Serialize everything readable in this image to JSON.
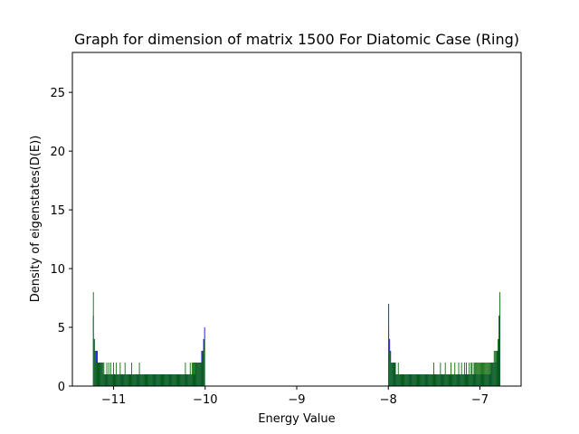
{
  "chart_data": {
    "type": "bar",
    "title": "Graph for dimension of matrix 1500 For Diatomic Case (Ring)",
    "xlabel": "Energy Value",
    "ylabel": "Density of eigenstates(D(E))",
    "xlim": [
      -11.45,
      -6.55
    ],
    "ylim": [
      0,
      28.4
    ],
    "xticks": [
      -11,
      -10,
      -9,
      -8,
      -7
    ],
    "xtick_labels": [
      "−11",
      "−10",
      "−9",
      "−8",
      "−7"
    ],
    "yticks": [
      0,
      5,
      10,
      15,
      20,
      25
    ],
    "ytick_labels": [
      "0",
      "5",
      "10",
      "15",
      "20",
      "25"
    ],
    "grid": false,
    "series": [
      {
        "color": "#0000cc",
        "bins": [
          {
            "x0": -11.225,
            "x1": -10.0,
            "values": [
              6,
              4,
              3,
              3,
              3,
              2,
              2,
              2,
              2,
              2,
              1,
              1,
              1,
              1,
              1,
              1,
              1,
              1,
              1,
              1,
              1,
              1,
              1,
              1,
              1,
              1,
              1,
              1,
              1,
              1,
              1,
              1,
              1,
              1,
              1,
              1,
              1,
              1,
              1,
              1,
              1,
              1,
              1,
              1,
              1,
              1,
              1,
              1,
              1,
              1,
              1,
              1,
              1,
              1,
              1,
              1,
              1,
              1,
              1,
              1,
              1,
              1,
              1,
              1,
              1,
              1,
              1,
              1,
              1,
              1,
              1,
              1,
              1,
              1,
              1,
              1,
              1,
              1,
              1,
              1,
              1,
              1,
              1,
              1,
              1,
              1,
              1,
              1,
              1,
              1,
              1,
              1,
              1,
              1,
              1,
              1,
              1,
              1,
              1,
              1,
              1,
              1,
              1,
              1,
              1,
              1,
              1,
              2,
              2,
              2,
              2,
              2,
              2,
              3,
              3,
              4,
              5
            ]
          },
          {
            "x0": -8.0,
            "x1": -6.775,
            "values": [
              7,
              4,
              3,
              2,
              2,
              2,
              2,
              2,
              1,
              1,
              1,
              1,
              1,
              1,
              1,
              1,
              1,
              1,
              1,
              1,
              1,
              1,
              1,
              1,
              1,
              1,
              1,
              1,
              1,
              1,
              1,
              1,
              1,
              1,
              1,
              1,
              1,
              1,
              1,
              1,
              1,
              1,
              1,
              1,
              1,
              1,
              1,
              1,
              1,
              1,
              1,
              1,
              1,
              1,
              1,
              1,
              1,
              1,
              1,
              1,
              1,
              1,
              1,
              1,
              1,
              1,
              1,
              1,
              1,
              1,
              1,
              1,
              1,
              1,
              1,
              1,
              1,
              1,
              1,
              1,
              1,
              1,
              1,
              1,
              1,
              1,
              1,
              1,
              1,
              1,
              1,
              1,
              1,
              1,
              1,
              1,
              1,
              1,
              1,
              1,
              1,
              1,
              1,
              1,
              1,
              1,
              1,
              2,
              2,
              2,
              2,
              2,
              2,
              3,
              3,
              4,
              6
            ]
          }
        ]
      },
      {
        "color": "#006400",
        "bins": [
          {
            "x0": -11.225,
            "x1": -10.0,
            "values": [
              8,
              4,
              3,
              2,
              2,
              2,
              2,
              2,
              2,
              2,
              2,
              2,
              1,
              1,
              2,
              1,
              2,
              1,
              2,
              1,
              1,
              2,
              1,
              1,
              2,
              1,
              1,
              1,
              2,
              1,
              1,
              1,
              1,
              2,
              1,
              1,
              1,
              1,
              1,
              1,
              2,
              1,
              1,
              1,
              1,
              1,
              1,
              1,
              2,
              1,
              1,
              1,
              1,
              1,
              1,
              1,
              1,
              1,
              1,
              1,
              1,
              1,
              1,
              1,
              1,
              1,
              1,
              1,
              1,
              1,
              1,
              1,
              1,
              1,
              1,
              1,
              1,
              1,
              1,
              1,
              1,
              1,
              1,
              1,
              1,
              1,
              1,
              1,
              1,
              1,
              1,
              1,
              1,
              1,
              1,
              1,
              2,
              1,
              1,
              1,
              1,
              2,
              1,
              2,
              2,
              2,
              2,
              2,
              2,
              2,
              2,
              2,
              2,
              2,
              3,
              3,
              4
            ]
          },
          {
            "x0": -8.0,
            "x1": -6.775,
            "values": [
              5,
              3,
              2,
              2,
              2,
              2,
              2,
              2,
              1,
              1,
              2,
              1,
              1,
              1,
              1,
              1,
              1,
              1,
              1,
              1,
              1,
              1,
              1,
              1,
              1,
              1,
              1,
              1,
              1,
              1,
              1,
              1,
              1,
              1,
              1,
              1,
              1,
              1,
              1,
              1,
              1,
              1,
              1,
              1,
              1,
              1,
              1,
              2,
              1,
              1,
              1,
              1,
              1,
              1,
              2,
              1,
              1,
              1,
              1,
              2,
              1,
              1,
              1,
              1,
              1,
              2,
              1,
              1,
              1,
              2,
              1,
              1,
              1,
              2,
              1,
              1,
              2,
              1,
              1,
              2,
              1,
              2,
              1,
              1,
              2,
              1,
              2,
              2,
              1,
              2,
              2,
              2,
              2,
              2,
              2,
              2,
              2,
              2,
              2,
              2,
              2,
              2,
              2,
              2,
              2,
              2,
              2,
              2,
              2,
              2,
              3,
              3,
              3,
              3,
              4,
              6,
              8
            ]
          }
        ]
      }
    ]
  }
}
